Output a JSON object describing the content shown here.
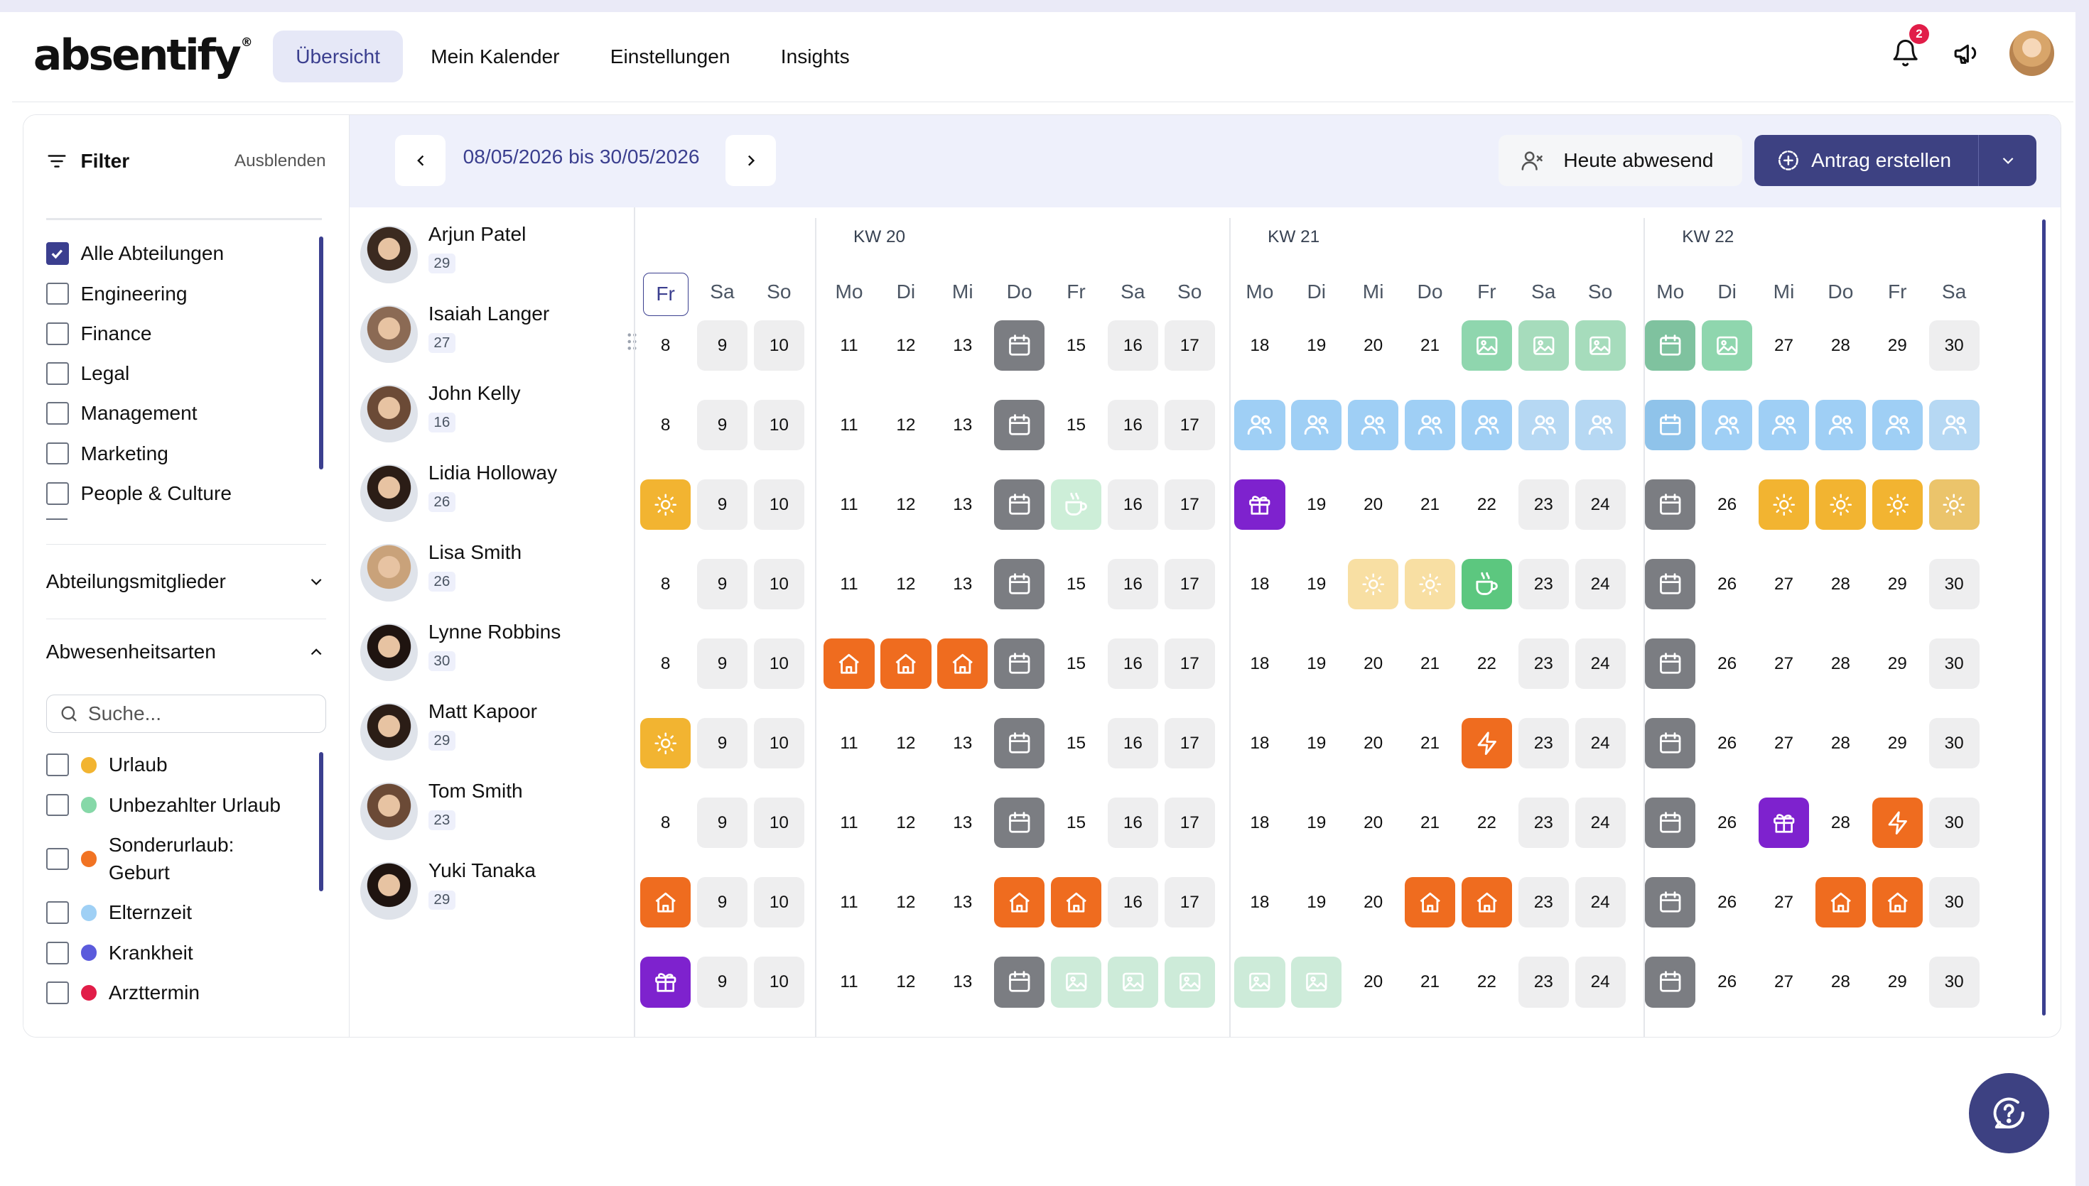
{
  "app": {
    "logo": "absentify",
    "registered": "®"
  },
  "nav": {
    "items": [
      "Übersicht",
      "Mein Kalender",
      "Einstellungen",
      "Insights"
    ],
    "active": "Übersicht"
  },
  "header": {
    "notification_count": "2"
  },
  "filter": {
    "title": "Filter",
    "hide_label": "Ausblenden",
    "departments": [
      {
        "label": "Alle Abteilungen",
        "checked": true
      },
      {
        "label": "Engineering",
        "checked": false
      },
      {
        "label": "Finance",
        "checked": false
      },
      {
        "label": "Legal",
        "checked": false
      },
      {
        "label": "Management",
        "checked": false
      },
      {
        "label": "Marketing",
        "checked": false
      },
      {
        "label": "People & Culture",
        "checked": false
      }
    ],
    "members_section": "Abteilungsmitglieder",
    "absence_section": "Abwesenheitsarten",
    "search_placeholder": "Suche...",
    "absence_types": [
      {
        "label": "Urlaub",
        "color": "#f2b431"
      },
      {
        "label": "Unbezahlter Urlaub",
        "color": "#86d8a8"
      },
      {
        "label": "Sonderurlaub: Geburt",
        "color": "#f17323"
      },
      {
        "label": "Elternzeit",
        "color": "#9fd0f5"
      },
      {
        "label": "Krankheit",
        "color": "#5b5bdc"
      },
      {
        "label": "Arzttermin",
        "color": "#e11d48"
      }
    ]
  },
  "calendar": {
    "date_range": "08/05/2026 bis 30/05/2026",
    "today_button": "Heute abwesend",
    "create_button": "Antrag erstellen",
    "weeks": [
      {
        "label": "KW 20"
      },
      {
        "label": "KW 21"
      },
      {
        "label": "KW 22"
      }
    ],
    "day_names": [
      "Fr",
      "Sa",
      "So",
      "Mo",
      "Di",
      "Mi",
      "Do",
      "Fr",
      "Sa",
      "So",
      "Mo",
      "Di",
      "Mi",
      "Do",
      "Fr",
      "Sa",
      "So",
      "Mo",
      "Di",
      "Mi",
      "Do",
      "Fr",
      "Sa"
    ],
    "dates": [
      "8",
      "9",
      "10",
      "11",
      "12",
      "13",
      "14",
      "15",
      "16",
      "17",
      "18",
      "19",
      "20",
      "21",
      "22",
      "23",
      "24",
      "25",
      "26",
      "27",
      "28",
      "29",
      "30"
    ],
    "weekend_index": [
      1,
      2,
      8,
      9,
      15,
      16,
      22
    ],
    "today_index": 0,
    "employees": [
      {
        "name": "Arjun Patel",
        "count": "29"
      },
      {
        "name": "Isaiah Langer",
        "count": "27"
      },
      {
        "name": "John Kelly",
        "count": "16"
      },
      {
        "name": "Lidia Holloway",
        "count": "26"
      },
      {
        "name": "Lisa Smith",
        "count": "26"
      },
      {
        "name": "Lynne Robbins",
        "count": "30"
      },
      {
        "name": "Matt Kapoor",
        "count": "29"
      },
      {
        "name": "Tom Smith",
        "count": "23"
      },
      {
        "name": "Yuki Tanaka",
        "count": "29"
      }
    ],
    "cells": [
      [
        "",
        "",
        "",
        "",
        "",
        "",
        "holiday",
        "",
        "",
        "",
        "",
        "",
        "",
        "",
        "image-g",
        "image-gl",
        "image-gl",
        "holiday-g",
        "image-g",
        "",
        "",
        "",
        ""
      ],
      [
        "",
        "",
        "",
        "",
        "",
        "",
        "holiday",
        "",
        "",
        "",
        "people-b",
        "people-b",
        "people-b",
        "people-b",
        "people-b",
        "people-bl",
        "people-bl",
        "holiday-b",
        "people-b",
        "people-b",
        "people-b",
        "people-b",
        "people-bl"
      ],
      [
        "sun",
        "",
        "",
        "",
        "",
        "",
        "holiday",
        "coffee-l",
        "",
        "",
        "gift",
        "",
        "",
        "",
        "",
        "",
        "",
        "holiday",
        "",
        "sun",
        "sun",
        "sun",
        "sun-l"
      ],
      [
        "",
        "",
        "",
        "",
        "",
        "",
        "holiday",
        "",
        "",
        "",
        "",
        "",
        "sun-p",
        "sun-p",
        "coffee",
        "",
        "",
        "holiday",
        "",
        "",
        "",
        "",
        ""
      ],
      [
        "",
        "",
        "",
        "home",
        "home",
        "home",
        "holiday",
        "",
        "",
        "",
        "",
        "",
        "",
        "",
        "",
        "",
        "",
        "holiday",
        "",
        "",
        "",
        "",
        ""
      ],
      [
        "sun",
        "",
        "",
        "",
        "",
        "",
        "holiday",
        "",
        "",
        "",
        "",
        "",
        "",
        "",
        "bolt",
        "",
        "",
        "holiday",
        "",
        "",
        "",
        "",
        ""
      ],
      [
        "",
        "",
        "",
        "",
        "",
        "",
        "holiday",
        "",
        "",
        "",
        "",
        "",
        "",
        "",
        "",
        "",
        "",
        "holiday",
        "",
        "gift",
        "",
        "bolt",
        ""
      ],
      [
        "home",
        "",
        "",
        "",
        "",
        "",
        "home",
        "home",
        "",
        "",
        "",
        "",
        "",
        "home",
        "home",
        "",
        "",
        "holiday",
        "",
        "",
        "home",
        "home",
        ""
      ],
      [
        "gift",
        "",
        "",
        "",
        "",
        "",
        "holiday",
        "image-l",
        "image-l",
        "image-l",
        "image-l",
        "image-l",
        "",
        "",
        "",
        "",
        "",
        "holiday",
        "",
        "",
        "",
        "",
        ""
      ]
    ]
  }
}
